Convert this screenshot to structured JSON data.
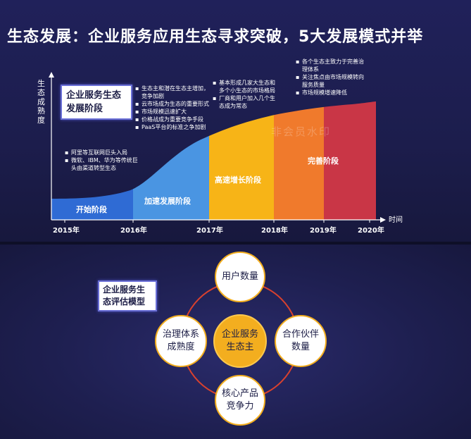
{
  "page": {
    "title": "生态发展：企业服务应用生态寻求突破，5大发展模式并举"
  },
  "top_chart": {
    "y_axis_label": "生态成熟度",
    "x_axis_label": "时间",
    "title_box": "企业服务生态发展阶段",
    "years": [
      "2015年",
      "2016年",
      "2017年",
      "2018年",
      "2019年",
      "2020年"
    ],
    "stages": [
      {
        "label": "开始阶段",
        "color": "#2f6bd4"
      },
      {
        "label": "加速发展阶段",
        "color": "#4a95e2"
      },
      {
        "label": "高速增长阶段",
        "color": "#f7b417"
      },
      {
        "label": "",
        "color": "#f07a2c"
      },
      {
        "label": "完善阶段",
        "color": "#c93646"
      }
    ],
    "notes": [
      [
        "阿里等互联网巨头入局",
        "微软、IBM、华为等传统巨头由渠道转型生态"
      ],
      [
        "生态主和潜在生态主增加，竞争加剧",
        "云市场成为生态的重要形式",
        "市场规模迅速扩大",
        "价格战成为重要竞争手段",
        "PaaS平台的标准之争加剧"
      ],
      [
        "基本形成几家大生态和多个小生态的市场格局",
        "厂商和用户加入几个生态成为常态"
      ],
      [
        "各个生态主致力于完善治理体系",
        "关注焦点由市场规模转向服务质量",
        "市场规模增速降低"
      ]
    ],
    "watermark": "非会员水印"
  },
  "model": {
    "title_box": "企业服务生态评估模型",
    "center": "企业服务生态主",
    "nodes": {
      "top": "用户数量",
      "right": "合作伙伴数量",
      "bottom": "核心产品竞争力",
      "left": "治理体系成熟度"
    },
    "ring_color": "#d9412e",
    "accent_color": "#f3ae1f"
  }
}
